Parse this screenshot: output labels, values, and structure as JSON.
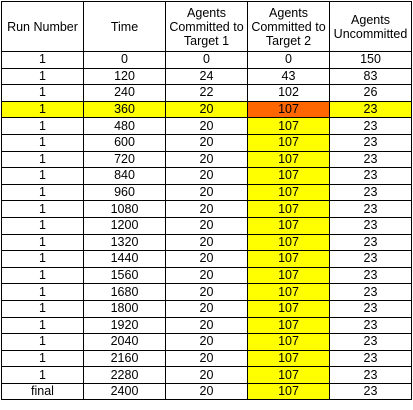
{
  "table": {
    "headers": [
      "Run Number",
      "Time",
      "Agents Committed to Target 1",
      "Agents Committed to Target 2",
      "Agents Uncommitted"
    ],
    "rows": [
      [
        "1",
        "0",
        "0",
        "0",
        "150"
      ],
      [
        "1",
        "120",
        "24",
        "43",
        "83"
      ],
      [
        "1",
        "240",
        "22",
        "102",
        "26"
      ],
      [
        "1",
        "360",
        "20",
        "107",
        "23"
      ],
      [
        "1",
        "480",
        "20",
        "107",
        "23"
      ],
      [
        "1",
        "600",
        "20",
        "107",
        "23"
      ],
      [
        "1",
        "720",
        "20",
        "107",
        "23"
      ],
      [
        "1",
        "840",
        "20",
        "107",
        "23"
      ],
      [
        "1",
        "960",
        "20",
        "107",
        "23"
      ],
      [
        "1",
        "1080",
        "20",
        "107",
        "23"
      ],
      [
        "1",
        "1200",
        "20",
        "107",
        "23"
      ],
      [
        "1",
        "1320",
        "20",
        "107",
        "23"
      ],
      [
        "1",
        "1440",
        "20",
        "107",
        "23"
      ],
      [
        "1",
        "1560",
        "20",
        "107",
        "23"
      ],
      [
        "1",
        "1680",
        "20",
        "107",
        "23"
      ],
      [
        "1",
        "1800",
        "20",
        "107",
        "23"
      ],
      [
        "1",
        "1920",
        "20",
        "107",
        "23"
      ],
      [
        "1",
        "2040",
        "20",
        "107",
        "23"
      ],
      [
        "1",
        "2160",
        "20",
        "107",
        "23"
      ],
      [
        "1",
        "2280",
        "20",
        "107",
        "23"
      ],
      [
        "final",
        "2400",
        "20",
        "107",
        "23"
      ]
    ],
    "highlight_row_index": 3,
    "highlight_column_index": 3,
    "colors": {
      "row_highlight": "#ffff00",
      "column_highlight": "#ffff00",
      "intersection_highlight": "#ff6600",
      "border": "#000000"
    }
  }
}
